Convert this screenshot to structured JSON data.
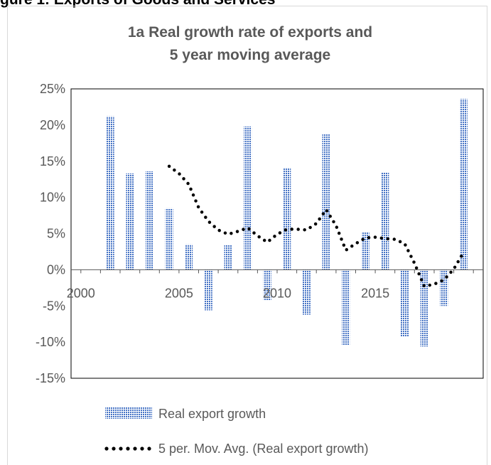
{
  "header": {
    "text": "gure 1: Exports of Goods and Services"
  },
  "chart_data": {
    "type": "bar",
    "title_lines": [
      "1a Real growth rate of exports and",
      "5 year moving average"
    ],
    "colors": {
      "bar": "#4472c4",
      "line": "#000000",
      "axis": "#595959",
      "frame": "#000000"
    },
    "y_axis": {
      "range": [
        -15,
        25
      ],
      "ticks": [
        -15,
        -10,
        -5,
        0,
        5,
        10,
        15,
        20,
        25
      ],
      "format": "percent"
    },
    "x_axis": {
      "range": [
        1999,
        2020
      ],
      "tick_labels": [
        2000,
        2005,
        2010,
        2015
      ],
      "labels_at_zero": true
    },
    "grid": false,
    "series": [
      {
        "name": "Real export growth",
        "kind": "bar",
        "pattern": "dotted-blue",
        "x": [
          2001,
          2002,
          2003,
          2004,
          2005,
          2006,
          2007,
          2008,
          2009,
          2010,
          2011,
          2012,
          2013,
          2014,
          2015,
          2016,
          2017,
          2018,
          2019
        ],
        "values": [
          21.2,
          13.3,
          13.6,
          8.5,
          3.5,
          -5.6,
          3.4,
          19.8,
          -4.2,
          14.1,
          -6.2,
          18.8,
          -10.4,
          5.2,
          13.5,
          -9.3,
          -10.6,
          -5.0,
          23.6
        ]
      },
      {
        "name": "5 per. Mov. Avg. (Real export growth)",
        "kind": "line",
        "style": "dotted",
        "x": [
          2004,
          2004.5,
          2005,
          2005.5,
          2006,
          2006.5,
          2007,
          2007.5,
          2008,
          2008.5,
          2009,
          2009.5,
          2010,
          2010.5,
          2011,
          2011.5,
          2012,
          2012.5,
          2013,
          2013.5,
          2014,
          2014.5,
          2015,
          2015.5,
          2016,
          2016.5,
          2017,
          2017.5,
          2018,
          2018.5,
          2019
        ],
        "values": [
          14.3,
          13.3,
          11.8,
          8.6,
          6.7,
          5.5,
          4.9,
          5.3,
          5.8,
          4.7,
          3.8,
          4.9,
          5.6,
          5.6,
          5.5,
          6.4,
          8.3,
          6.1,
          2.7,
          3.6,
          4.4,
          4.5,
          4.3,
          4.2,
          3.6,
          0.9,
          -2.3,
          -2.0,
          -1.4,
          0.1,
          2.4
        ]
      }
    ],
    "legend": {
      "position": "bottom"
    }
  }
}
